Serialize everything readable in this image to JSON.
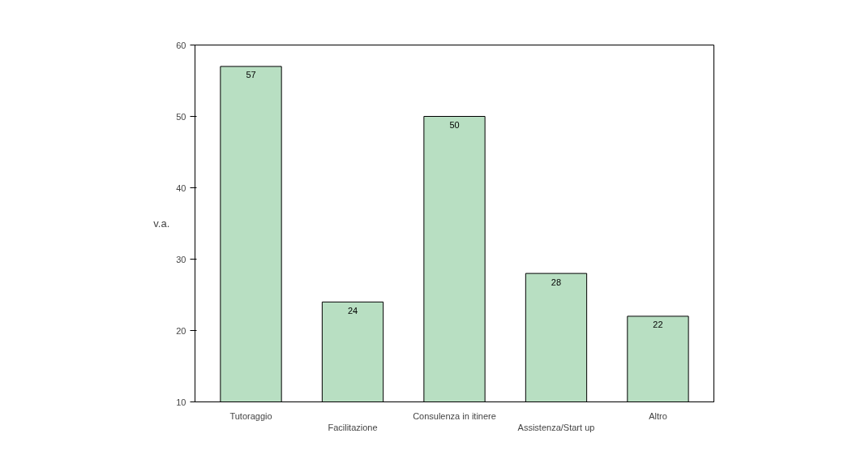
{
  "chart_data": {
    "type": "bar",
    "ylabel": "v.a.",
    "categories": [
      "Tutoraggio",
      "Facilitazione",
      "Consulenza in itinere",
      "Assistenza/Start up",
      "Altro"
    ],
    "values": [
      57,
      24,
      50,
      28,
      22
    ],
    "color": "#b8dfc2",
    "ylim": [
      10,
      60
    ],
    "yticks": [
      10,
      20,
      30,
      40,
      50,
      60
    ],
    "grid": false,
    "data_labels": true
  }
}
